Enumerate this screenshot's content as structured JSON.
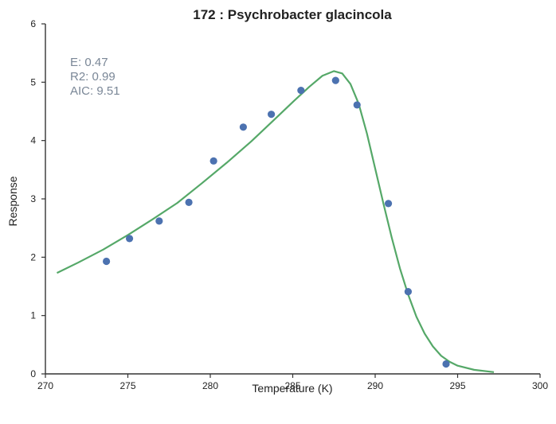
{
  "chart_data": {
    "type": "scatter",
    "title": "172 : Psychrobacter glacincola",
    "xlabel": "Temperature (K)",
    "ylabel": "Response",
    "xlim": [
      270,
      300
    ],
    "ylim": [
      0,
      6
    ],
    "xticks": [
      270,
      275,
      280,
      285,
      290,
      295,
      300
    ],
    "yticks": [
      0,
      1,
      2,
      3,
      4,
      5,
      6
    ],
    "grid": false,
    "annotations": [
      "E:  0.47",
      "R2:  0.99",
      "AIC: 9.51"
    ],
    "colors": {
      "points": "#4c72b0",
      "fit": "#55a868",
      "annotation": "#7a8797"
    },
    "series": [
      {
        "type": "scatter",
        "x": [
          273.7,
          275.1,
          276.9,
          278.7,
          280.2,
          282.0,
          283.7,
          285.5,
          287.6,
          288.9,
          290.8,
          292.0,
          294.3
        ],
        "y": [
          1.93,
          2.32,
          2.62,
          2.94,
          3.65,
          4.23,
          4.45,
          4.86,
          5.03,
          4.61,
          2.92,
          1.41,
          0.17
        ]
      },
      {
        "type": "line",
        "x": [
          270.7,
          272.0,
          273.5,
          275.0,
          276.5,
          278.0,
          279.5,
          281.0,
          282.5,
          284.0,
          285.0,
          286.0,
          286.8,
          287.5,
          288.0,
          288.5,
          289.0,
          289.5,
          290.0,
          290.5,
          291.0,
          291.5,
          292.0,
          292.5,
          293.0,
          293.5,
          294.0,
          294.5,
          295.0,
          296.0,
          297.2
        ],
        "y": [
          1.73,
          1.91,
          2.13,
          2.38,
          2.65,
          2.93,
          3.27,
          3.62,
          3.99,
          4.39,
          4.66,
          4.92,
          5.11,
          5.19,
          5.15,
          4.97,
          4.63,
          4.12,
          3.52,
          2.92,
          2.34,
          1.81,
          1.36,
          0.98,
          0.69,
          0.47,
          0.31,
          0.21,
          0.14,
          0.07,
          0.03
        ]
      }
    ]
  }
}
